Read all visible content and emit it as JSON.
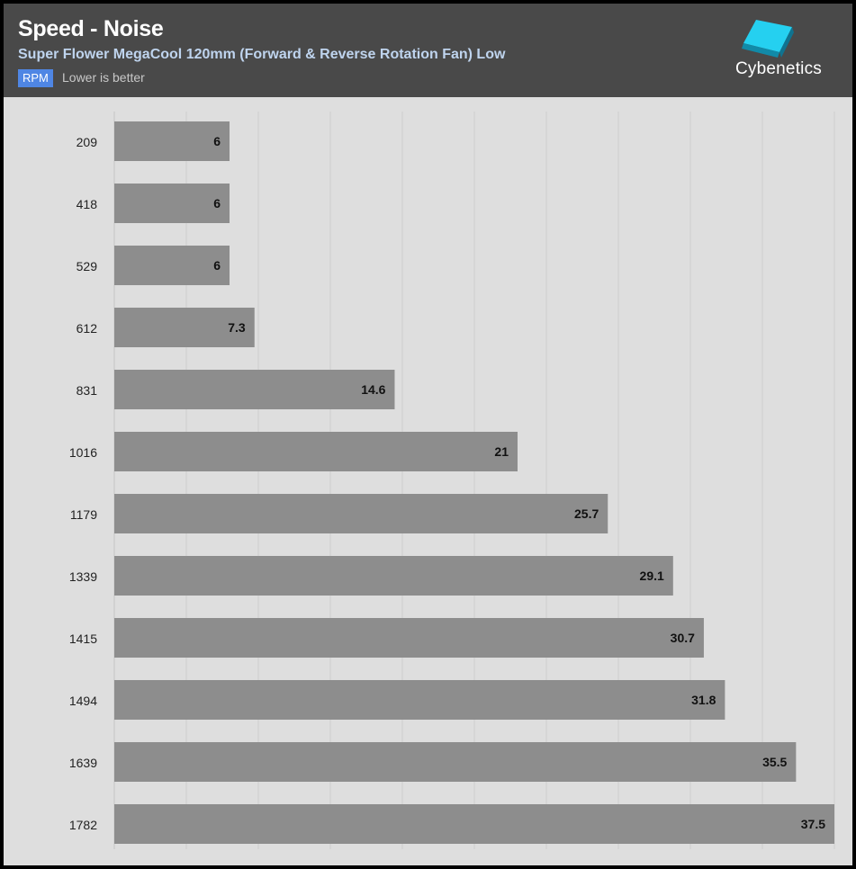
{
  "header": {
    "title": "Speed - Noise",
    "subtitle": "Super Flower MegaCool 120mm (Forward & Reverse Rotation Fan) Low",
    "badge": "RPM",
    "note": "Lower is better",
    "brand": "Cybenetics"
  },
  "colors": {
    "background": "#dedede",
    "header": "#494949",
    "bar": "#8d8d8d",
    "badge": "#4f86e4",
    "subtitle": "#bfd4ee",
    "grid": "#cfcfcf"
  },
  "chart_data": {
    "type": "bar",
    "orientation": "horizontal",
    "title": "Speed - Noise",
    "subtitle": "Super Flower MegaCool 120mm (Forward & Reverse Rotation Fan) Low",
    "categories": [
      "209",
      "418",
      "529",
      "612",
      "831",
      "1016",
      "1179",
      "1339",
      "1415",
      "1494",
      "1639",
      "1782"
    ],
    "values": [
      6,
      6,
      6,
      7.3,
      14.6,
      21,
      25.7,
      29.1,
      30.7,
      31.8,
      35.5,
      37.5
    ],
    "data_labels": [
      "6",
      "6",
      "6",
      "7.3",
      "14.6",
      "21",
      "25.7",
      "29.1",
      "30.7",
      "31.8",
      "35.5",
      "37.5"
    ],
    "xlim": [
      0,
      37.5
    ],
    "grid": true,
    "legend": "none"
  }
}
